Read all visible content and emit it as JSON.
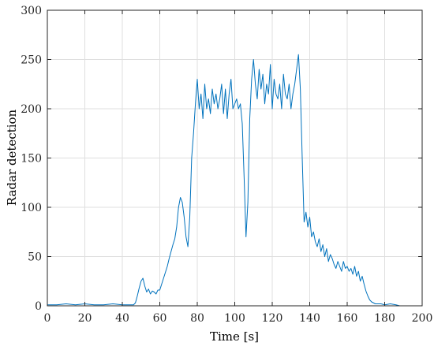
{
  "chart_data": {
    "type": "line",
    "title": "",
    "xlabel": "Time [s]",
    "ylabel": "Radar detection",
    "xlim": [
      0,
      200
    ],
    "ylim": [
      0,
      300
    ],
    "xticks": [
      0,
      20,
      40,
      60,
      80,
      100,
      120,
      140,
      160,
      180,
      200
    ],
    "yticks": [
      0,
      50,
      100,
      150,
      200,
      250,
      300
    ],
    "grid": true,
    "legend": "none",
    "line_color": "#0072BD",
    "series": [
      {
        "x": [
          0,
          5,
          10,
          15,
          20,
          25,
          30,
          35,
          40,
          45,
          46,
          47,
          48,
          49,
          50,
          51,
          52,
          53,
          54,
          55,
          56,
          57,
          58,
          59,
          60,
          61,
          62,
          63,
          64,
          65,
          66,
          67,
          68,
          69,
          70,
          71,
          72,
          73,
          74,
          75,
          76,
          77,
          78,
          79,
          80,
          81,
          82,
          83,
          84,
          85,
          86,
          87,
          88,
          89,
          90,
          91,
          92,
          93,
          94,
          95,
          96,
          97,
          98,
          99,
          100,
          101,
          102,
          103,
          104,
          105,
          106,
          107,
          108,
          109,
          110,
          111,
          112,
          113,
          114,
          115,
          116,
          117,
          118,
          119,
          120,
          121,
          122,
          123,
          124,
          125,
          126,
          127,
          128,
          129,
          130,
          131,
          132,
          133,
          134,
          135,
          136,
          137,
          138,
          139,
          140,
          141,
          142,
          143,
          144,
          145,
          146,
          147,
          148,
          149,
          150,
          151,
          152,
          153,
          154,
          155,
          156,
          157,
          158,
          159,
          160,
          161,
          162,
          163,
          164,
          165,
          166,
          167,
          168,
          169,
          170,
          171,
          172,
          173,
          174,
          175,
          178,
          180,
          183,
          186,
          188
        ],
        "y": [
          1,
          1,
          2,
          1,
          2,
          1,
          1,
          2,
          1,
          1,
          1,
          3,
          10,
          18,
          25,
          28,
          20,
          14,
          17,
          12,
          15,
          14,
          12,
          16,
          16,
          22,
          28,
          34,
          40,
          48,
          55,
          62,
          68,
          80,
          100,
          110,
          105,
          90,
          70,
          60,
          90,
          150,
          175,
          205,
          230,
          200,
          215,
          190,
          225,
          200,
          210,
          195,
          220,
          205,
          215,
          200,
          210,
          225,
          195,
          220,
          190,
          215,
          230,
          200,
          205,
          210,
          200,
          205,
          185,
          130,
          70,
          105,
          190,
          230,
          250,
          225,
          210,
          240,
          220,
          235,
          205,
          225,
          215,
          245,
          200,
          230,
          215,
          210,
          225,
          200,
          235,
          215,
          210,
          225,
          200,
          215,
          225,
          240,
          255,
          220,
          150,
          85,
          95,
          80,
          90,
          70,
          75,
          65,
          60,
          68,
          55,
          62,
          50,
          58,
          45,
          52,
          48,
          42,
          38,
          45,
          40,
          35,
          45,
          38,
          40,
          35,
          38,
          32,
          40,
          30,
          35,
          25,
          30,
          22,
          15,
          10,
          6,
          4,
          3,
          2,
          2,
          1,
          2,
          1,
          0
        ]
      }
    ]
  }
}
